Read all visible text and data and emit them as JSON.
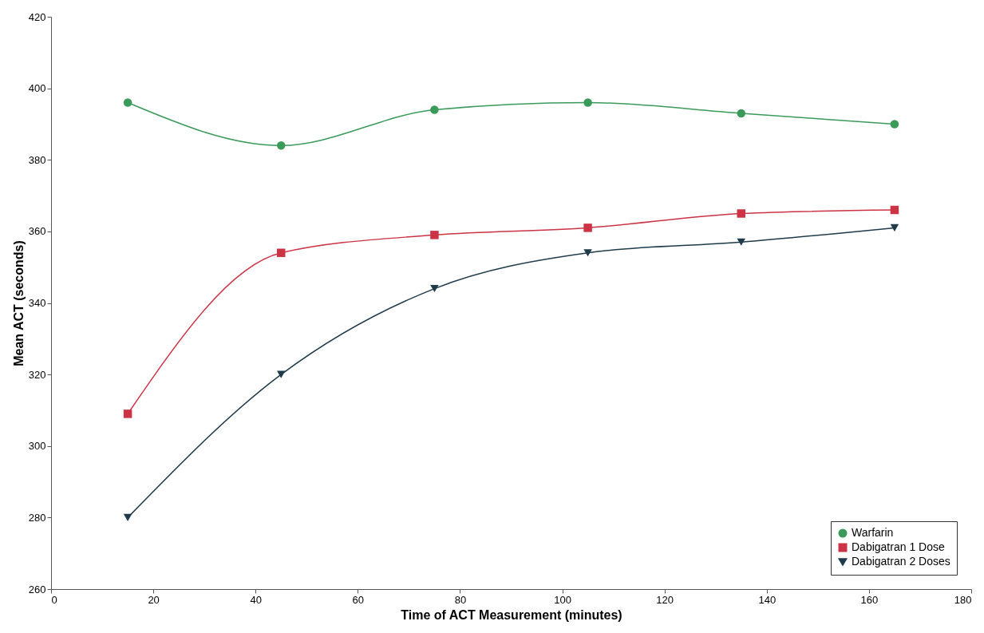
{
  "chart_data": {
    "type": "line",
    "xlabel": "Time of ACT Measurement (minutes)",
    "ylabel": "Mean ACT (seconds)",
    "x": [
      15,
      45,
      75,
      105,
      135,
      165
    ],
    "series": [
      {
        "name": "Warfarin",
        "color": "#3a9a5a",
        "marker": "circle",
        "values": [
          396,
          384,
          394,
          396,
          393,
          390
        ]
      },
      {
        "name": "Dabigatran 1 Dose",
        "color": "#cc3344",
        "marker": "square",
        "values": [
          309,
          354,
          359,
          361,
          365,
          366
        ]
      },
      {
        "name": "Dabigatran 2 Doses",
        "color": "#1f3a4a",
        "marker": "triangle",
        "values": [
          280,
          320,
          344,
          354,
          357,
          361
        ]
      }
    ],
    "xlim": [
      0,
      180
    ],
    "xticks": [
      0,
      20,
      40,
      60,
      80,
      100,
      120,
      140,
      160,
      180
    ],
    "ylim": [
      260,
      420
    ],
    "yticks": [
      260,
      280,
      300,
      320,
      340,
      360,
      380,
      400,
      420
    ],
    "grid": false,
    "legend": "bottom right",
    "line_style": "solid"
  }
}
